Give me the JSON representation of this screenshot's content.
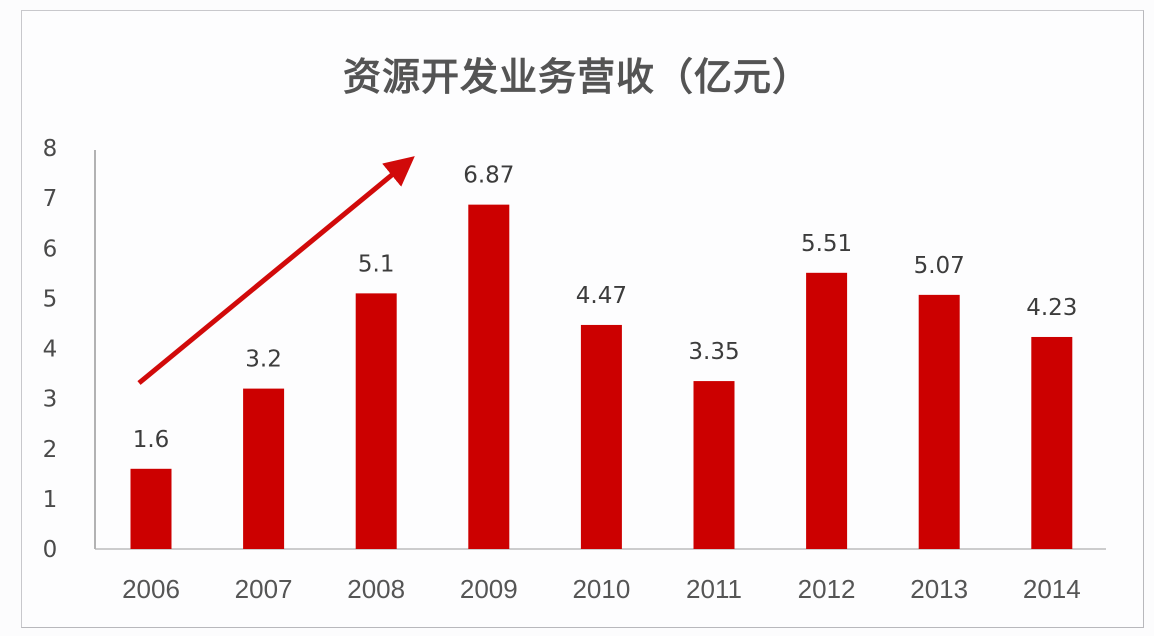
{
  "chart_data": {
    "type": "bar",
    "title": "资源开发业务营收（亿元）",
    "xlabel": "",
    "ylabel": "",
    "categories": [
      "2006",
      "2007",
      "2008",
      "2009",
      "2010",
      "2011",
      "2012",
      "2013",
      "2014"
    ],
    "values": [
      1.6,
      3.2,
      5.1,
      6.87,
      4.47,
      3.35,
      5.51,
      5.07,
      4.23
    ],
    "data_labels": [
      "1.6",
      "3.2",
      "5.1",
      "6.87",
      "4.47",
      "3.35",
      "5.51",
      "5.07",
      "4.23"
    ],
    "ylim": [
      0,
      8
    ],
    "yticks": [
      "0",
      "1",
      "2",
      "3",
      "4",
      "5",
      "6",
      "7",
      "8"
    ],
    "grid": false,
    "legend": null,
    "annotations": [
      {
        "type": "arrow",
        "description": "upward trend arrow from 2006 to 2009",
        "color": "#cc0000"
      }
    ],
    "colors": {
      "bar": "#cc0000",
      "arrow": "#d10a0a",
      "axis": "#9a9a9a",
      "text": "#4a4a4a"
    }
  }
}
